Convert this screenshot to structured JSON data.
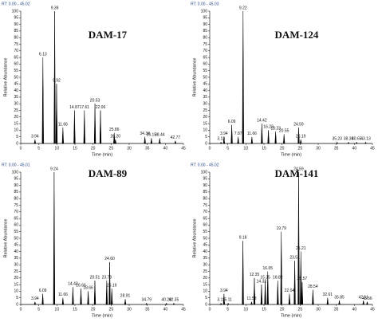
{
  "chart_data": [
    {
      "type": "chromatogram",
      "title": "DAM-17",
      "subtitle": "RT: 0.00 - 45.02",
      "xlabel": "Time (min)",
      "ylabel": "Relative Abundance",
      "x": [
        3.94,
        6.13,
        9.39,
        9.92,
        11.66,
        14.87,
        17.61,
        20.53,
        22.06,
        25.86,
        26.2,
        34.34,
        36.15,
        38.44,
        42.77
      ],
      "x_labels": [
        "3.94",
        "6.13",
        "9.39",
        "9.92",
        "11.66",
        "14.87",
        "17.61",
        "20.53",
        "22.06",
        "25.86",
        "26.20",
        "34.34",
        "36.15",
        "38.44",
        "42.77"
      ],
      "values": [
        3,
        65,
        100,
        45,
        12,
        25,
        25,
        30,
        25,
        8,
        3,
        5,
        4,
        4,
        2
      ],
      "color": "#000000",
      "xlim": [
        0,
        45
      ],
      "ylim": [
        0,
        100
      ],
      "xticks": [
        0,
        5,
        10,
        15,
        20,
        25,
        30,
        35,
        40,
        45
      ],
      "yticks": [
        0,
        5,
        10,
        15,
        20,
        25,
        30,
        35,
        40,
        45,
        50,
        55,
        60,
        65,
        70,
        75,
        80,
        85,
        90,
        95,
        100
      ]
    },
    {
      "type": "chromatogram",
      "title": "DAM-124",
      "subtitle": "RT: 0.00 - 45.03",
      "xlabel": "Time (min)",
      "ylabel": "Relative Abundance",
      "x": [
        3.13,
        3.94,
        6.09,
        7.87,
        9.22,
        11.66,
        14.42,
        16.23,
        18.23,
        20.55,
        24.59,
        25.19,
        35.23,
        38.39,
        40.65,
        43.13
      ],
      "x_labels": [
        "3.13",
        "3.94",
        "6.09",
        "7.87",
        "9.22",
        "11.66",
        "14.42",
        "16.23",
        "18.23",
        "20.55",
        "24.59",
        "25.19",
        "35.23",
        "38.39",
        "40.65",
        "43.13"
      ],
      "values": [
        1,
        5,
        14,
        5,
        100,
        5,
        15,
        10,
        9,
        7,
        12,
        3,
        1,
        1,
        1,
        1
      ],
      "color": "#000000",
      "xlim": [
        0,
        45
      ],
      "ylim": [
        0,
        100
      ],
      "xticks": [
        0,
        5,
        10,
        15,
        20,
        25,
        30,
        35,
        40,
        45
      ],
      "yticks": [
        0,
        5,
        10,
        15,
        20,
        25,
        30,
        35,
        40,
        45,
        50,
        55,
        60,
        65,
        70,
        75,
        80,
        85,
        90,
        95,
        100
      ]
    },
    {
      "type": "chromatogram",
      "title": "DAM-89",
      "subtitle": "RT: 0.00 - 45.01",
      "xlabel": "Time (min)",
      "ylabel": "Relative Abundance",
      "x": [
        3.94,
        6.09,
        9.24,
        11.66,
        14.43,
        16.66,
        18.66,
        20.51,
        23.79,
        24.6,
        25.19,
        28.91,
        34.79,
        40.29,
        42.35
      ],
      "x_labels": [
        "3.94",
        "6.09",
        "9.24",
        "11.66",
        "14.43",
        "16.66",
        "18.66",
        "20.51",
        "23.79",
        "24.60",
        "25.19",
        "28.91",
        "34.79",
        "40.29",
        "42.35"
      ],
      "values": [
        2,
        8,
        100,
        5,
        13,
        12,
        10,
        18,
        18,
        32,
        12,
        4,
        1,
        1,
        1
      ],
      "color": "#000000",
      "xlim": [
        0,
        45
      ],
      "ylim": [
        0,
        100
      ],
      "xticks": [
        0,
        5,
        10,
        15,
        20,
        25,
        30,
        35,
        40,
        45
      ],
      "yticks": [
        0,
        5,
        10,
        15,
        20,
        25,
        30,
        35,
        40,
        45,
        50,
        55,
        60,
        65,
        70,
        75,
        80,
        85,
        90,
        95,
        100
      ]
    },
    {
      "type": "chromatogram",
      "title": "DAM-141",
      "subtitle": "RT: 0.00 - 45.02",
      "xlabel": "Time (min)",
      "ylabel": "Relative Abundance",
      "x": [
        3.11,
        3.94,
        5.11,
        9.18,
        11.58,
        12.35,
        14.32,
        15.35,
        16.05,
        18.82,
        19.79,
        22.04,
        23.51,
        24.59,
        25.21,
        25.57,
        28.54,
        32.61,
        35.85,
        42.51,
        43.56
      ],
      "x_labels": [
        "3.11",
        "3.94",
        "5.11",
        "9.18",
        "11.58",
        "12.35",
        "14.32",
        "15.35",
        "16.05",
        "18.82",
        "19.79",
        "22.04",
        "23.51",
        "24.59",
        "25.21",
        "25.57",
        "28.54",
        "32.61",
        "35.85",
        "42.51",
        "43.56"
      ],
      "values": [
        1,
        8,
        1,
        48,
        2,
        20,
        15,
        18,
        25,
        18,
        55,
        8,
        33,
        100,
        40,
        17,
        11,
        5,
        3,
        3,
        2
      ],
      "color": "#000000",
      "xlim": [
        0,
        45
      ],
      "ylim": [
        0,
        100
      ],
      "xticks": [
        0,
        5,
        10,
        15,
        20,
        25,
        30,
        35,
        40,
        45
      ],
      "yticks": [
        0,
        5,
        10,
        15,
        20,
        25,
        30,
        35,
        40,
        45,
        50,
        55,
        60,
        65,
        70,
        75,
        80,
        85,
        90,
        95,
        100
      ]
    }
  ]
}
